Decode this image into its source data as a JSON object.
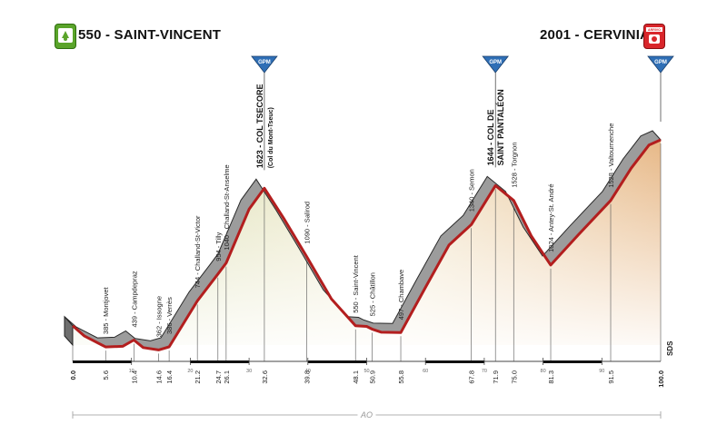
{
  "header": {
    "start_title": "550 - SAINT-VINCENT",
    "finish_title": "2001 - CERVINIA",
    "start_badge_icon": "start-flag-icon",
    "finish_badge_icon": "finish-arrivo-icon",
    "finish_badge_text": "ARRIVO"
  },
  "chart_data": {
    "type": "area",
    "title": "",
    "xlabel": "",
    "ylabel": "",
    "xlim": [
      0,
      100
    ],
    "ylim": [
      400,
      2100
    ],
    "profile": [
      {
        "km": 0.0,
        "alt": 550
      },
      {
        "km": 2.0,
        "alt": 470
      },
      {
        "km": 5.6,
        "alt": 385
      },
      {
        "km": 8.5,
        "alt": 390
      },
      {
        "km": 10.4,
        "alt": 439
      },
      {
        "km": 12.0,
        "alt": 380
      },
      {
        "km": 14.6,
        "alt": 362
      },
      {
        "km": 16.4,
        "alt": 386
      },
      {
        "km": 21.2,
        "alt": 744
      },
      {
        "km": 24.7,
        "alt": 954
      },
      {
        "km": 26.1,
        "alt": 1040
      },
      {
        "km": 30.0,
        "alt": 1460
      },
      {
        "km": 32.6,
        "alt": 1623
      },
      {
        "km": 36.0,
        "alt": 1380
      },
      {
        "km": 39.8,
        "alt": 1090
      },
      {
        "km": 44.0,
        "alt": 760
      },
      {
        "km": 48.1,
        "alt": 550
      },
      {
        "km": 50.0,
        "alt": 545
      },
      {
        "km": 50.9,
        "alt": 525
      },
      {
        "km": 52.5,
        "alt": 500
      },
      {
        "km": 55.8,
        "alt": 497
      },
      {
        "km": 60.0,
        "alt": 850
      },
      {
        "km": 64.0,
        "alt": 1180
      },
      {
        "km": 67.8,
        "alt": 1340
      },
      {
        "km": 71.9,
        "alt": 1644
      },
      {
        "km": 75.0,
        "alt": 1528
      },
      {
        "km": 78.0,
        "alt": 1250
      },
      {
        "km": 81.3,
        "alt": 1024
      },
      {
        "km": 86.0,
        "alt": 1260
      },
      {
        "km": 91.5,
        "alt": 1528
      },
      {
        "km": 95.0,
        "alt": 1780
      },
      {
        "km": 98.0,
        "alt": 1960
      },
      {
        "km": 100.0,
        "alt": 2001
      }
    ],
    "point_labels": [
      {
        "km": 5.6,
        "text": "385 - Montjovet"
      },
      {
        "km": 10.4,
        "text": "439 - Campdepraz"
      },
      {
        "km": 14.6,
        "text": "362 - Issogne"
      },
      {
        "km": 16.4,
        "text": "386 - Verrès"
      },
      {
        "km": 21.2,
        "text": "744 - Challand-St-Victor"
      },
      {
        "km": 24.7,
        "text": "954 - Tilly"
      },
      {
        "km": 26.1,
        "text": "1040 - Challand-St-Anselme"
      },
      {
        "km": 39.8,
        "text": "1090 - Salirod"
      },
      {
        "km": 48.1,
        "text": "550 - Saint-Vincent"
      },
      {
        "km": 50.9,
        "text": "525 - Châtillon"
      },
      {
        "km": 55.8,
        "text": "497 - Chambave"
      },
      {
        "km": 67.8,
        "text": "1340 - Semon"
      },
      {
        "km": 75.0,
        "text": "1528 - Torgnon"
      },
      {
        "km": 81.3,
        "text": "1024 - Antey-St. André"
      },
      {
        "km": 91.5,
        "text": "1528 - Valtournenche"
      }
    ],
    "climbs": [
      {
        "km": 32.6,
        "label": "1623 - COL TSECORE",
        "sub": "(Col du Mont-Tseuc)",
        "category": "GPM"
      },
      {
        "km": 71.9,
        "label": "1644 - COL DE",
        "sub": "SAINT PANTALÉON",
        "category": "GPM"
      },
      {
        "km": 100.0,
        "label": "",
        "sub": "",
        "category": "GPM"
      }
    ],
    "km_markers": [
      "0.0",
      "5.6",
      "10.4",
      "14.6",
      "16.4",
      "21.2",
      "24.7",
      "26.1",
      "32.6",
      "39.8",
      "48.1",
      "50.9",
      "55.8",
      "67.8",
      "71.9",
      "75.0",
      "81.3",
      "91.5",
      "100.0"
    ],
    "ruler_ticks": [
      "10",
      "20",
      "30",
      "40",
      "50",
      "60",
      "70",
      "80",
      "90"
    ],
    "region_label": "AO",
    "edge_label": "SDS",
    "colors": {
      "profile_line": "#b31e1e",
      "profile_band": "#9c9c9c",
      "fill_top_left": "#d2dba6",
      "fill_top_right": "#e7b887",
      "gpm_marker": "#2f6fb6",
      "ruler_dark": "#111111"
    }
  }
}
